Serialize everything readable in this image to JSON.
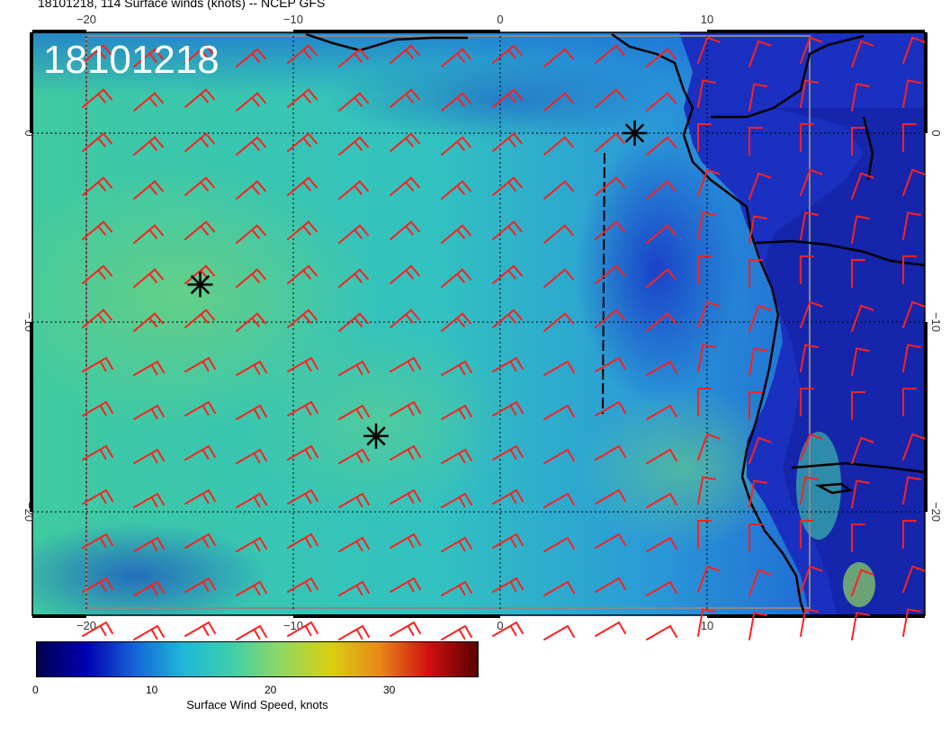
{
  "title": "18101218, 114 Surface winds (knots) -- NCEP GFS",
  "datestamp": "18101218",
  "colorbar": {
    "label": "Surface Wind Speed, knots",
    "ticks": [
      "0",
      "10",
      "20",
      "30"
    ],
    "colors": [
      "#00004f",
      "#0000b0",
      "#1565d8",
      "#1fb8d8",
      "#3fcfa8",
      "#90d860",
      "#d8d010",
      "#e88818",
      "#d01010",
      "#5a0000"
    ]
  },
  "axes": {
    "lon_ticks": [
      "−20",
      "−10",
      "0",
      "10"
    ],
    "lat_ticks": [
      "0",
      "−10",
      "−20"
    ]
  },
  "markers": [
    {
      "name": "storm-marker-1",
      "lon": -14.5,
      "lat": -8
    },
    {
      "name": "storm-marker-2",
      "lon": -6,
      "lat": -16
    },
    {
      "name": "storm-marker-3",
      "lon": 6.5,
      "lat": 0
    }
  ],
  "colors": {
    "barb": "#ff2020",
    "coast": "#000000",
    "grid": "#000000"
  }
}
